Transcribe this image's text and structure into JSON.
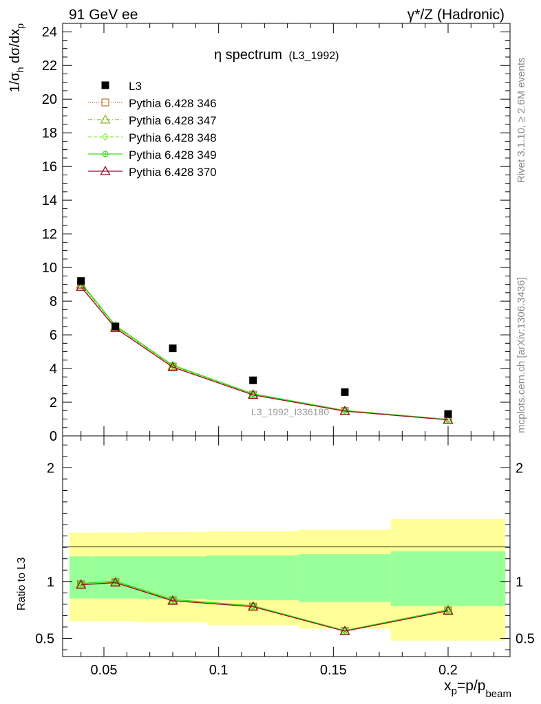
{
  "header": {
    "left": "91 GeV ee",
    "right": "γ*/Z (Hadronic)"
  },
  "side_text": {
    "rivet": "Rivet 3.1.10, ≥ 2.6M events",
    "mcplots": "mcplots.cern.ch [arXiv:1306.3436]"
  },
  "chart_data": [
    {
      "type": "scatter",
      "title": "η spectrum",
      "title_tag": "(L3_1992)",
      "ylabel": "1/σh dσ/dxp",
      "ylim": [
        0,
        24.5
      ],
      "yticks": [
        "0",
        "2",
        "4",
        "6",
        "8",
        "10",
        "12",
        "14",
        "16",
        "18",
        "20",
        "22",
        "24"
      ],
      "xlim": [
        0.032,
        0.227
      ],
      "watermark": "L3_1992_I336180",
      "legend_position": "top-left",
      "x": [
        0.04,
        0.055,
        0.08,
        0.115,
        0.155,
        0.2
      ],
      "data": {
        "name": "L3",
        "y": [
          9.2,
          6.5,
          5.2,
          3.3,
          2.6,
          1.3
        ],
        "color": "#000000"
      },
      "series": [
        {
          "name": "Pythia 6.428 346",
          "color": "#b87333",
          "marker": "square-open",
          "dash": "1,2",
          "y": [
            8.95,
            6.45,
            4.12,
            2.45,
            1.48,
            0.96
          ]
        },
        {
          "name": "Pythia 6.428 347",
          "color": "#8fbf1f",
          "marker": "triangle-open",
          "dash": "6,3,1,3",
          "y": [
            9.0,
            6.5,
            4.15,
            2.47,
            1.49,
            0.97
          ]
        },
        {
          "name": "Pythia 6.428 348",
          "color": "#90ee40",
          "marker": "diamond-open",
          "dash": "5,3",
          "y": [
            9.05,
            6.52,
            4.17,
            2.48,
            1.5,
            0.97
          ]
        },
        {
          "name": "Pythia 6.428 349",
          "color": "#33dd11",
          "marker": "circle-cross",
          "dash": "",
          "y": [
            9.1,
            6.55,
            4.2,
            2.5,
            1.51,
            0.98
          ]
        },
        {
          "name": "Pythia 6.428 370",
          "color": "#99112a",
          "marker": "triangle-open",
          "dash": "",
          "y": [
            8.85,
            6.4,
            4.08,
            2.43,
            1.47,
            0.95
          ]
        }
      ]
    },
    {
      "type": "line",
      "ylabel": "Ratio to L3",
      "xlabel": "xp=p/pbeam",
      "ylim": [
        0.34,
        2.28
      ],
      "yticks": [
        "0.5",
        "1",
        "2"
      ],
      "xlim": [
        0.032,
        0.227
      ],
      "xticks": [
        "0.05",
        "0.1",
        "0.15",
        "0.2"
      ],
      "bands": [
        {
          "x0": 0.035,
          "x1": 0.045,
          "stat": [
            0.85,
            1.22
          ],
          "total": [
            0.65,
            1.43
          ]
        },
        {
          "x0": 0.045,
          "x1": 0.065,
          "stat": [
            0.85,
            1.22
          ],
          "total": [
            0.65,
            1.43
          ]
        },
        {
          "x0": 0.065,
          "x1": 0.095,
          "stat": [
            0.845,
            1.22
          ],
          "total": [
            0.64,
            1.435
          ]
        },
        {
          "x0": 0.095,
          "x1": 0.135,
          "stat": [
            0.835,
            1.23
          ],
          "total": [
            0.615,
            1.445
          ]
        },
        {
          "x0": 0.135,
          "x1": 0.175,
          "stat": [
            0.82,
            1.24
          ],
          "total": [
            0.585,
            1.455
          ]
        },
        {
          "x0": 0.175,
          "x1": 0.225,
          "stat": [
            0.785,
            1.265
          ],
          "total": [
            0.48,
            1.55
          ]
        }
      ],
      "series": [
        {
          "name": "Pythia 6.428 346",
          "y": [
            0.975,
            0.993,
            0.835,
            0.78,
            0.565,
            0.745
          ]
        },
        {
          "name": "Pythia 6.428 347",
          "y": [
            0.978,
            0.997,
            0.838,
            0.782,
            0.567,
            0.747
          ]
        },
        {
          "name": "Pythia 6.428 348",
          "y": [
            0.98,
            1.0,
            0.84,
            0.784,
            0.568,
            0.749
          ]
        },
        {
          "name": "Pythia 6.428 349",
          "y": [
            0.982,
            1.003,
            0.842,
            0.786,
            0.569,
            0.752
          ]
        },
        {
          "name": "Pythia 6.428 370",
          "y": [
            0.97,
            0.99,
            0.83,
            0.778,
            0.563,
            0.742
          ]
        }
      ]
    }
  ]
}
